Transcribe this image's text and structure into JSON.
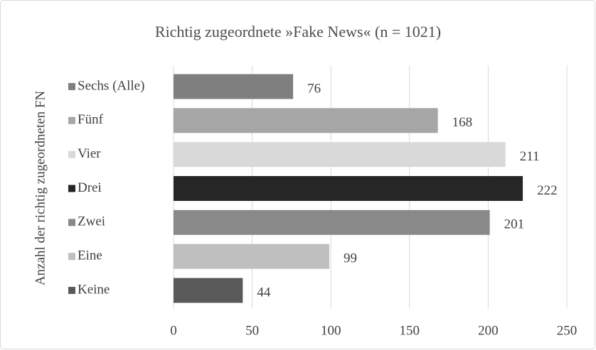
{
  "chart_data": {
    "type": "bar",
    "orientation": "horizontal",
    "title": "Richtig zugeordnete »Fake News« (n = 1021)",
    "y_label": "Anzahl der richtig zugeordneten FN",
    "categories": [
      "Sechs (Alle)",
      "Fünf",
      "Vier",
      "Drei",
      "Zwei",
      "Eine",
      "Keine"
    ],
    "values": [
      76,
      168,
      211,
      222,
      201,
      99,
      44
    ],
    "colors": [
      "#7f7f7f",
      "#a6a6a6",
      "#d9d9d9",
      "#262626",
      "#898989",
      "#bfbfbf",
      "#595959"
    ],
    "xlim": [
      0,
      250
    ],
    "xticks": [
      0,
      50,
      100,
      150,
      200,
      250
    ],
    "grid": true
  }
}
